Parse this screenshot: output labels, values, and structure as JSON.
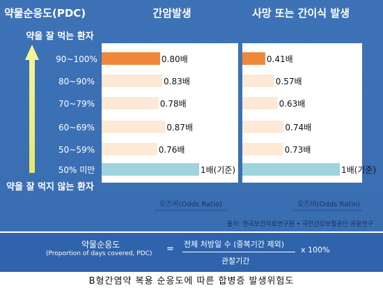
{
  "colors": {
    "panel_bg": "#3a6eb3",
    "plot_bg": "#ffffff",
    "highlight_bar": "#f0873a",
    "normal_bar": "#fde9d6",
    "reference_bar": "#9fd3de",
    "arrow": "#f3f08a",
    "footer_bg": "#2f63ab"
  },
  "header": {
    "left_title": "약물순응도(PDC)",
    "col1_title": "간암발생",
    "col2_title": "사망 또는 간이식 발생"
  },
  "arrow_labels": {
    "top": "약을 잘 먹는 환자",
    "bottom": "약을 잘 먹지 않는 환자"
  },
  "source": "출처: 한국보건의료연구원 • 국민건강보험공단 공동연구",
  "chart_data": [
    {
      "type": "bar",
      "orientation": "horizontal",
      "title": "간암발생",
      "categories": [
        "90~100%",
        "80~90%",
        "70~79%",
        "60~69%",
        "50~59%",
        "50% 미만"
      ],
      "values": [
        0.8,
        0.83,
        0.78,
        0.87,
        0.76,
        1.0
      ],
      "data_labels": [
        "0.80배",
        "0.83배",
        "0.78배",
        "0.87배",
        "0.76배",
        "1배(기준)"
      ],
      "highlight_index": 0,
      "reference_index": 5,
      "xlabel": "오즈비(Odds Ratio)",
      "xlim": [
        0,
        1.0
      ]
    },
    {
      "type": "bar",
      "orientation": "horizontal",
      "title": "사망 또는 간이식 발생",
      "categories": [
        "90~100%",
        "80~90%",
        "70~79%",
        "60~69%",
        "50~59%",
        "50% 미만"
      ],
      "values": [
        0.41,
        0.57,
        0.63,
        0.74,
        0.73,
        1.0
      ],
      "data_labels": [
        "0.41배",
        "0.57배",
        "0.63배",
        "0.74배",
        "0.73배",
        "1배(기준)"
      ],
      "highlight_index": 0,
      "reference_index": 5,
      "xlabel": "오즈비(Odds Ratio)",
      "xlim": [
        0,
        1.0
      ]
    }
  ],
  "formula": {
    "lhs_title": "약물순응도",
    "lhs_sub": "(Proportion of days covered, PDC)",
    "equals": "=",
    "numerator": "전체 처방일 수 (중복기간 제외)",
    "denominator": "관찰기간",
    "multiplier": "x 100%"
  },
  "caption": "B형간염약 복용 순응도에 따른 합병증 발생위험도"
}
